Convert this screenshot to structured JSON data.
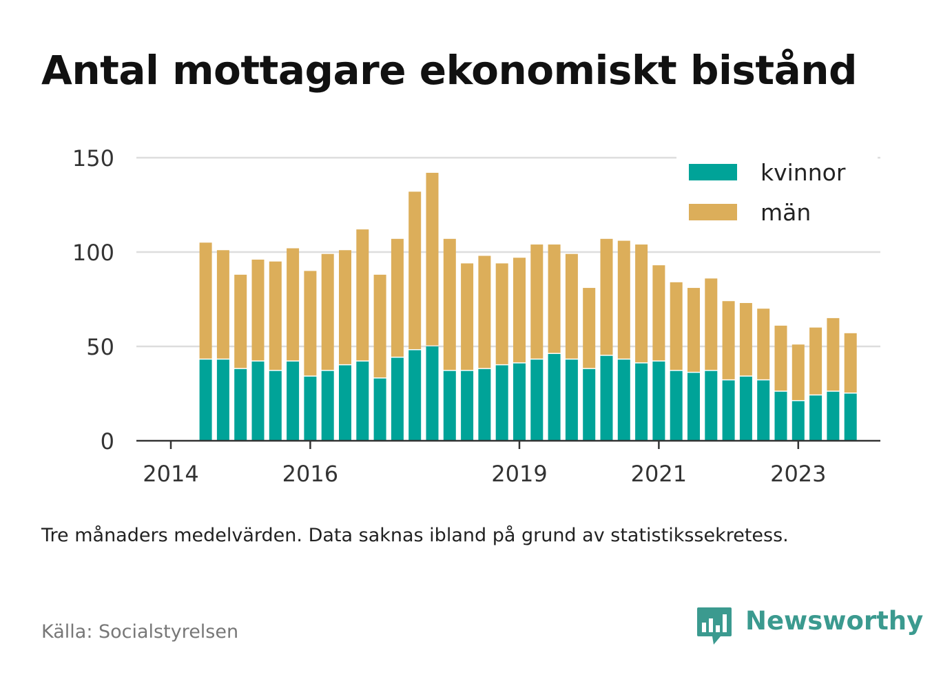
{
  "title": "Antal mottagare ekonomiskt bistånd",
  "note": "Tre månaders medelvärden. Data saknas ibland på grund av statistikssekretess.",
  "source": "Källa: Socialstyrelsen",
  "brand": "Newsworthy",
  "colors": {
    "kvinnor": "#00a398",
    "man": "#dcae5a",
    "brand": "#3b9a8f"
  },
  "chart_data": {
    "type": "bar",
    "stacked": true,
    "x": [
      "2014-07",
      "2014-10",
      "2015-01",
      "2015-04",
      "2015-07",
      "2015-10",
      "2016-01",
      "2016-04",
      "2016-07",
      "2016-10",
      "2017-01",
      "2017-04",
      "2017-07",
      "2017-10",
      "2018-01",
      "2018-04",
      "2018-07",
      "2018-10",
      "2019-01",
      "2019-04",
      "2019-07",
      "2019-10",
      "2020-01",
      "2020-04",
      "2020-07",
      "2020-10",
      "2021-01",
      "2021-04",
      "2021-07",
      "2021-10",
      "2022-01",
      "2022-04",
      "2022-07",
      "2022-10",
      "2023-01",
      "2023-04",
      "2023-07",
      "2023-10"
    ],
    "series": [
      {
        "name": "kvinnor",
        "values": [
          43,
          43,
          38,
          42,
          37,
          42,
          34,
          37,
          40,
          42,
          33,
          44,
          48,
          50,
          37,
          37,
          38,
          40,
          41,
          43,
          46,
          43,
          38,
          45,
          43,
          41,
          42,
          37,
          36,
          37,
          32,
          34,
          32,
          26,
          21,
          24,
          26,
          25
        ]
      },
      {
        "name": "män",
        "values": [
          62,
          58,
          50,
          54,
          58,
          60,
          56,
          62,
          61,
          70,
          55,
          63,
          84,
          92,
          70,
          57,
          60,
          54,
          56,
          61,
          58,
          56,
          43,
          62,
          63,
          63,
          51,
          47,
          45,
          49,
          42,
          39,
          38,
          35,
          30,
          36,
          39,
          32
        ]
      }
    ],
    "xticks": [
      {
        "value": "2014-01",
        "label": "2014"
      },
      {
        "value": "2016-01",
        "label": "2016"
      },
      {
        "value": "2019-01",
        "label": "2019"
      },
      {
        "value": "2021-01",
        "label": "2021"
      },
      {
        "value": "2023-01",
        "label": "2023"
      }
    ],
    "yticks": [
      0,
      50,
      100,
      150
    ],
    "ylim": [
      0,
      150
    ],
    "grid": true,
    "legend": "top-right"
  }
}
